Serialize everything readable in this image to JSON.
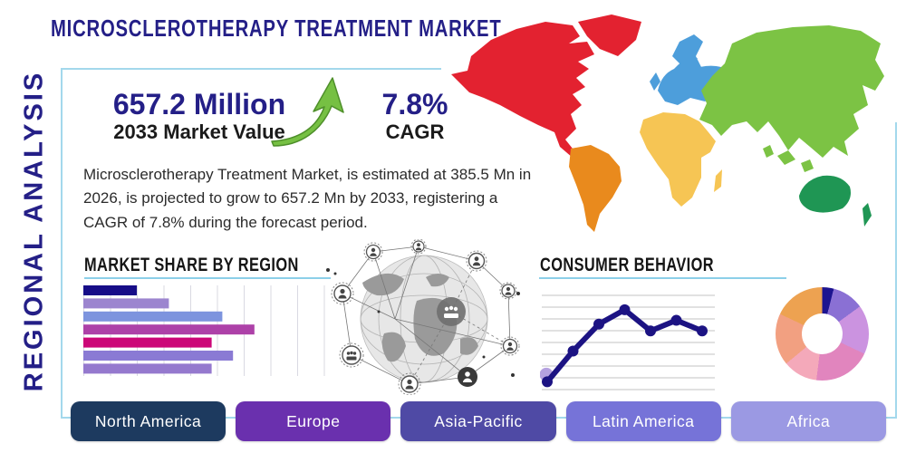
{
  "page": {
    "title": "MICROSCLEROTHERAPY TREATMENT MARKET",
    "side_label": "REGIONAL ANALYSIS"
  },
  "stats": {
    "market_value": "657.2 Million",
    "market_value_label": "2033 Market Value",
    "cagr_value": "7.8%",
    "cagr_label": "CAGR",
    "arrow_color": "#76c043"
  },
  "description": "Microsclerotherapy Treatment Market, is estimated at 385.5 Mn in 2026, is projected to grow to 657.2 Mn by 2033, registering a CAGR of 7.8% during the forecast period.",
  "chart_data": [
    {
      "type": "bar",
      "title": "MARKET SHARE BY REGION",
      "orientation": "horizontal",
      "categories": [
        "",
        "",
        "",
        "",
        "",
        "",
        ""
      ],
      "values": [
        20,
        32,
        52,
        64,
        48,
        56,
        48
      ],
      "value_unit": "percent-of-axis (estimated, no tick labels shown)",
      "xlim": [
        0,
        100
      ],
      "grid": true,
      "bar_colors": [
        "#170d88",
        "#9c85cf",
        "#7d94de",
        "#ad41a8",
        "#cc0778",
        "#8a7ad4",
        "#9579ce"
      ],
      "accent_underline": "#8ccfe9"
    },
    {
      "type": "line",
      "title": "CONSUMER BEHAVIOR",
      "x": [
        1,
        2,
        3,
        4,
        5,
        6,
        7
      ],
      "values": [
        10,
        42,
        70,
        85,
        63,
        74,
        63
      ],
      "ylim": [
        0,
        100
      ],
      "grid": true,
      "line_color": "#1c1383",
      "marker_color": "#1c1383",
      "first_point_halo_color": "#b5a1e0"
    },
    {
      "type": "pie",
      "title": "",
      "style": "donut",
      "slices": [
        {
          "percent": 4,
          "color": "#1d1490"
        },
        {
          "percent": 11,
          "color": "#8a70d4"
        },
        {
          "percent": 17,
          "color": "#cb93e0"
        },
        {
          "percent": 20,
          "color": "#e185be"
        },
        {
          "percent": 12,
          "color": "#f4a9ba"
        },
        {
          "percent": 18,
          "color": "#f2a081"
        },
        {
          "percent": 18,
          "color": "#eda251"
        }
      ]
    }
  ],
  "map": {
    "regions": [
      {
        "name": "North America",
        "color": "#e32230"
      },
      {
        "name": "South America",
        "color": "#e98a1d"
      },
      {
        "name": "Europe",
        "color": "#4d9edb"
      },
      {
        "name": "Africa",
        "color": "#f6c554"
      },
      {
        "name": "Asia",
        "color": "#7cc344"
      },
      {
        "name": "Australia",
        "color": "#1f9654"
      }
    ]
  },
  "region_buttons": [
    {
      "label": "North America",
      "color": "#1d3a5f"
    },
    {
      "label": "Europe",
      "color": "#6a30ae"
    },
    {
      "label": "Asia-Pacific",
      "color": "#4f4aa5"
    },
    {
      "label": "Latin America",
      "color": "#7673d8"
    },
    {
      "label": "Africa",
      "color": "#9b99e3"
    }
  ],
  "frame_color": "#a3d8ec"
}
